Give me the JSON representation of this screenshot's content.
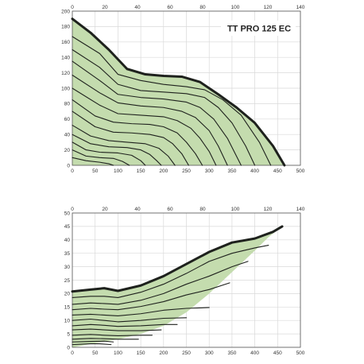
{
  "colors": {
    "fill": "#c4dcae",
    "boundary": "#1e211d",
    "curve": "#1e211d",
    "grid": "#d9d9d9"
  },
  "chart_data": [
    {
      "type": "line",
      "title": "TT PRO 125 EC",
      "xlabel": "",
      "ylabel": "",
      "xlim": [
        0,
        500
      ],
      "ylim": [
        0,
        200
      ],
      "x_ticks": [
        "0",
        "50",
        "100",
        "150",
        "200",
        "250",
        "300",
        "350",
        "400",
        "450",
        "500"
      ],
      "y_ticks": [
        "0",
        "20",
        "40",
        "60",
        "80",
        "100",
        "120",
        "140",
        "160",
        "180",
        "200"
      ],
      "x2lim": [
        0,
        140
      ],
      "x2_ticks": [
        "0",
        "20",
        "40",
        "60",
        "80",
        "100",
        "120",
        "140"
      ],
      "grid": true,
      "legend": "none",
      "envelope": {
        "x": [
          0,
          40,
          80,
          120,
          160,
          200,
          240,
          280,
          320,
          360,
          400,
          440,
          465
        ],
        "y": [
          190,
          172,
          150,
          125,
          118,
          116,
          115,
          108,
          92,
          75,
          55,
          25,
          0
        ]
      },
      "series": [
        {
          "x": [
            0,
            40,
            80,
            120,
            160,
            200,
            240,
            280,
            320,
            360,
            400,
            440,
            465
          ],
          "y": [
            190,
            172,
            150,
            125,
            118,
            116,
            115,
            108,
            92,
            75,
            55,
            25,
            0
          ]
        },
        {
          "x": [
            0,
            60,
            100,
            150,
            200,
            250,
            290,
            330,
            370,
            410,
            435
          ],
          "y": [
            167,
            145,
            118,
            110,
            105,
            102,
            98,
            85,
            65,
            30,
            0
          ]
        },
        {
          "x": [
            0,
            60,
            100,
            150,
            200,
            250,
            290,
            320,
            350,
            380,
            400
          ],
          "y": [
            150,
            127,
            105,
            97,
            95,
            93,
            88,
            75,
            55,
            25,
            0
          ]
        },
        {
          "x": [
            0,
            60,
            100,
            150,
            200,
            250,
            280,
            310,
            340,
            370
          ],
          "y": [
            135,
            110,
            92,
            88,
            86,
            82,
            75,
            60,
            35,
            0
          ]
        },
        {
          "x": [
            0,
            60,
            100,
            150,
            200,
            240,
            270,
            300,
            320,
            340
          ],
          "y": [
            117,
            94,
            81,
            77,
            75,
            70,
            62,
            45,
            25,
            0
          ]
        },
        {
          "x": [
            0,
            60,
            100,
            150,
            200,
            230,
            260,
            280,
            300,
            315
          ],
          "y": [
            100,
            78,
            67,
            65,
            63,
            58,
            48,
            35,
            18,
            0
          ]
        },
        {
          "x": [
            0,
            50,
            90,
            130,
            170,
            200,
            230,
            250,
            270,
            285
          ],
          "y": [
            85,
            64,
            56,
            54,
            53,
            50,
            42,
            30,
            15,
            0
          ]
        },
        {
          "x": [
            0,
            50,
            90,
            130,
            170,
            200,
            220,
            240,
            255
          ],
          "y": [
            70,
            50,
            43,
            42,
            40,
            36,
            28,
            15,
            0
          ]
        },
        {
          "x": [
            0,
            40,
            80,
            120,
            160,
            190,
            210,
            225
          ],
          "y": [
            52,
            38,
            32,
            30,
            28,
            22,
            12,
            0
          ]
        },
        {
          "x": [
            0,
            40,
            80,
            120,
            150,
            170,
            185,
            195
          ],
          "y": [
            40,
            28,
            24,
            23,
            20,
            14,
            6,
            0
          ]
        },
        {
          "x": [
            0,
            30,
            60,
            100,
            130,
            150,
            160
          ],
          "y": [
            30,
            20,
            17,
            16,
            13,
            6,
            0
          ]
        },
        {
          "x": [
            0,
            30,
            60,
            90,
            110,
            125
          ],
          "y": [
            20,
            12,
            10,
            9,
            5,
            0
          ]
        },
        {
          "x": [
            0,
            30,
            60,
            80,
            90
          ],
          "y": [
            10,
            6,
            4,
            2,
            0
          ]
        }
      ],
      "title_box": "top-right"
    },
    {
      "type": "line",
      "title": "",
      "xlabel": "",
      "ylabel": "",
      "xlim": [
        0,
        500
      ],
      "ylim": [
        0,
        50
      ],
      "x_ticks": [
        "0",
        "50",
        "100",
        "150",
        "200",
        "250",
        "300",
        "350",
        "400",
        "450",
        "500"
      ],
      "y_ticks": [
        "0",
        "5",
        "10",
        "15",
        "20",
        "25",
        "30",
        "35",
        "40",
        "45",
        "50"
      ],
      "x2lim": [
        0,
        140
      ],
      "x2_ticks": [
        "0",
        "20",
        "40",
        "60",
        "80",
        "100",
        "120",
        "140"
      ],
      "grid": true,
      "legend": "none",
      "envelope_upper": {
        "x": [
          0,
          40,
          70,
          100,
          150,
          200,
          250,
          300,
          350,
          400,
          440,
          460
        ],
        "y": [
          20.8,
          21.5,
          22,
          21,
          23,
          26.5,
          31,
          35.5,
          39,
          40.5,
          43,
          45
        ]
      },
      "envelope_lower": {
        "x": [
          460,
          430,
          400,
          350,
          300,
          250,
          200,
          150,
          100,
          50,
          0
        ],
        "y": [
          45,
          41,
          36,
          28,
          20,
          13,
          8,
          5,
          3,
          1.5,
          0
        ]
      },
      "series": [
        {
          "x": [
            0,
            40,
            70,
            100,
            150,
            200,
            250,
            300,
            350,
            400,
            440,
            460
          ],
          "y": [
            20.8,
            21.5,
            22,
            21,
            23,
            26.5,
            31,
            35.5,
            39,
            40.5,
            43,
            45
          ]
        },
        {
          "x": [
            0,
            40,
            70,
            100,
            150,
            200,
            250,
            300,
            350,
            400,
            430
          ],
          "y": [
            18.5,
            19,
            19,
            18.5,
            20.5,
            23.5,
            27.5,
            32,
            35,
            37,
            38
          ]
        },
        {
          "x": [
            0,
            40,
            70,
            100,
            150,
            200,
            250,
            300,
            350,
            385
          ],
          "y": [
            16,
            16.5,
            16.3,
            16,
            17.5,
            20,
            23.5,
            26.5,
            30,
            32
          ]
        },
        {
          "x": [
            0,
            40,
            70,
            100,
            150,
            200,
            250,
            300,
            345
          ],
          "y": [
            14,
            14.5,
            14.2,
            14,
            15.2,
            17,
            19.5,
            21.5,
            24
          ]
        },
        {
          "x": [
            0,
            40,
            70,
            100,
            150,
            200,
            250,
            300
          ],
          "y": [
            12,
            12.3,
            12,
            11.7,
            12.5,
            13.8,
            14.5,
            14.8
          ]
        },
        {
          "x": [
            0,
            40,
            70,
            100,
            150,
            200,
            250
          ],
          "y": [
            10,
            10.5,
            10,
            9.5,
            10,
            10.8,
            11
          ]
        },
        {
          "x": [
            0,
            40,
            70,
            100,
            150,
            200,
            230
          ],
          "y": [
            8,
            8.5,
            8.2,
            7.8,
            8,
            8.5,
            8.5
          ]
        },
        {
          "x": [
            0,
            40,
            70,
            100,
            150,
            195
          ],
          "y": [
            6.5,
            6.8,
            6.5,
            6.2,
            6.2,
            6.5
          ]
        },
        {
          "x": [
            0,
            40,
            70,
            100,
            150,
            175
          ],
          "y": [
            4.5,
            4.8,
            4.5,
            4.3,
            4.5,
            4.5
          ]
        },
        {
          "x": [
            0,
            40,
            70,
            100,
            145
          ],
          "y": [
            3,
            3.3,
            3.2,
            3,
            3
          ]
        },
        {
          "x": [
            0,
            40,
            70,
            90
          ],
          "y": [
            2,
            2.2,
            2.3,
            2
          ]
        },
        {
          "x": [
            0,
            40,
            60,
            85
          ],
          "y": [
            1,
            1.3,
            1.3,
            1
          ]
        }
      ]
    }
  ]
}
